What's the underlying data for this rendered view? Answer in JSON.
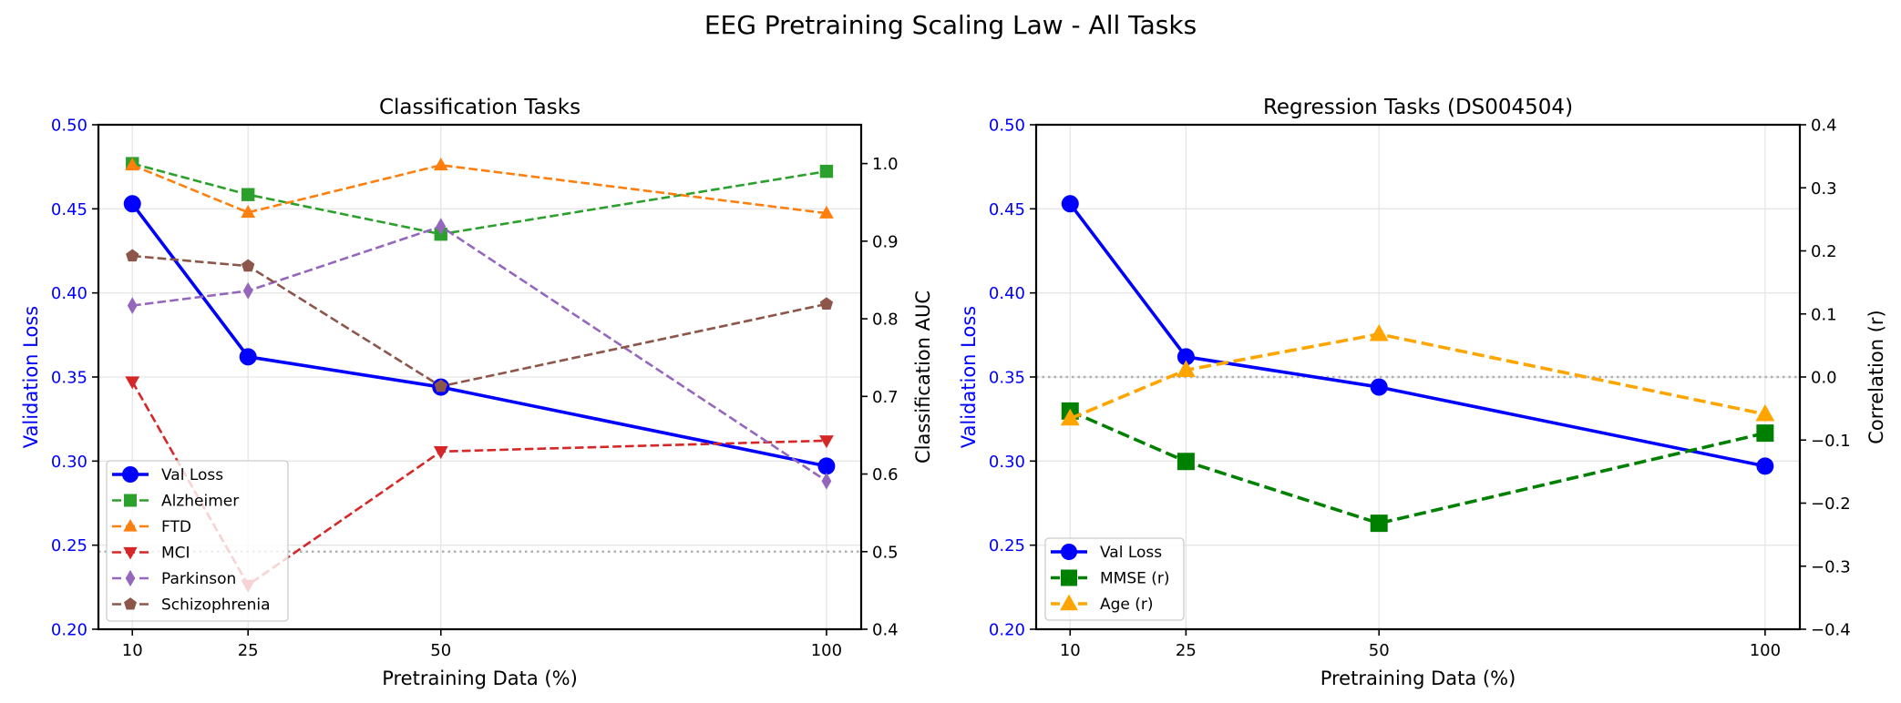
{
  "suptitle": "EEG Pretraining Scaling Law - All Tasks",
  "chart_data": [
    {
      "type": "line",
      "title": "Classification Tasks",
      "xlabel": "Pretraining Data (%)",
      "ylabel_left": "Validation Loss",
      "ylabel_right": "Classification AUC",
      "x": [
        10,
        25,
        50,
        100
      ],
      "x_ticks": [
        "10",
        "25",
        "50",
        "100"
      ],
      "xlim": [
        5.6,
        104.5
      ],
      "ylim_left": [
        0.2,
        0.5
      ],
      "ylim_right": [
        0.4,
        1.05
      ],
      "y_ticks_left": [
        "0.20",
        "0.25",
        "0.30",
        "0.35",
        "0.40",
        "0.45",
        "0.50"
      ],
      "y_ticks_right": [
        "0.4",
        "0.5",
        "0.6",
        "0.7",
        "0.8",
        "0.9",
        "1.0"
      ],
      "grid": true,
      "reference_line": {
        "axis": "right",
        "value": 0.5,
        "style": "dotted",
        "color": "#b0b0b0"
      },
      "legend_position": "lower-left",
      "series": [
        {
          "name": "Val Loss",
          "axis": "left",
          "color": "#0000ff",
          "style": "solid",
          "marker": "circle",
          "values": [
            0.453,
            0.362,
            0.344,
            0.297
          ]
        },
        {
          "name": "Alzheimer",
          "axis": "right",
          "color": "#2ca02c",
          "style": "dashed",
          "marker": "square",
          "values": [
            1.0,
            0.96,
            0.909,
            0.99
          ]
        },
        {
          "name": "FTD",
          "axis": "right",
          "color": "#ff7f0e",
          "style": "dashed",
          "marker": "triangle-up",
          "values": [
            0.998,
            0.937,
            0.998,
            0.936
          ]
        },
        {
          "name": "MCI",
          "axis": "right",
          "color": "#d62728",
          "style": "dashed",
          "marker": "triangle-down",
          "values": [
            0.719,
            0.457,
            0.629,
            0.643
          ]
        },
        {
          "name": "Parkinson",
          "axis": "right",
          "color": "#9467bd",
          "style": "dashed",
          "marker": "thin-diamond",
          "values": [
            0.817,
            0.836,
            0.919,
            0.591
          ]
        },
        {
          "name": "Schizophrenia",
          "axis": "right",
          "color": "#8c564b",
          "style": "dashed",
          "marker": "pentagon",
          "values": [
            0.881,
            0.868,
            0.713,
            0.819
          ]
        }
      ]
    },
    {
      "type": "line",
      "title": "Regression Tasks (DS004504)",
      "xlabel": "Pretraining Data (%)",
      "ylabel_left": "Validation Loss",
      "ylabel_right": "Correlation (r)",
      "x": [
        10,
        25,
        50,
        100
      ],
      "x_ticks": [
        "10",
        "25",
        "50",
        "100"
      ],
      "xlim": [
        5.6,
        104.5
      ],
      "ylim_left": [
        0.2,
        0.5
      ],
      "ylim_right": [
        -0.4,
        0.4
      ],
      "y_ticks_left": [
        "0.20",
        "0.25",
        "0.30",
        "0.35",
        "0.40",
        "0.45",
        "0.50"
      ],
      "y_ticks_right": [
        "−0.4",
        "−0.3",
        "−0.2",
        "−0.1",
        "0.0",
        "0.1",
        "0.2",
        "0.3",
        "0.4"
      ],
      "grid": true,
      "reference_line": {
        "axis": "right",
        "value": 0.0,
        "style": "dotted",
        "color": "#b0b0b0"
      },
      "legend_position": "lower-left",
      "series": [
        {
          "name": "Val Loss",
          "axis": "left",
          "color": "#0000ff",
          "style": "solid",
          "marker": "circle",
          "values": [
            0.453,
            0.362,
            0.344,
            0.297
          ]
        },
        {
          "name": "MMSE (r)",
          "axis": "right",
          "color": "#008000",
          "style": "dashed",
          "marker": "square",
          "values": [
            -0.054,
            -0.134,
            -0.232,
            -0.089
          ]
        },
        {
          "name": "Age (r)",
          "axis": "right",
          "color": "#ffa500",
          "style": "dashed",
          "marker": "triangle-up",
          "values": [
            -0.066,
            0.011,
            0.068,
            -0.059
          ]
        }
      ]
    }
  ]
}
